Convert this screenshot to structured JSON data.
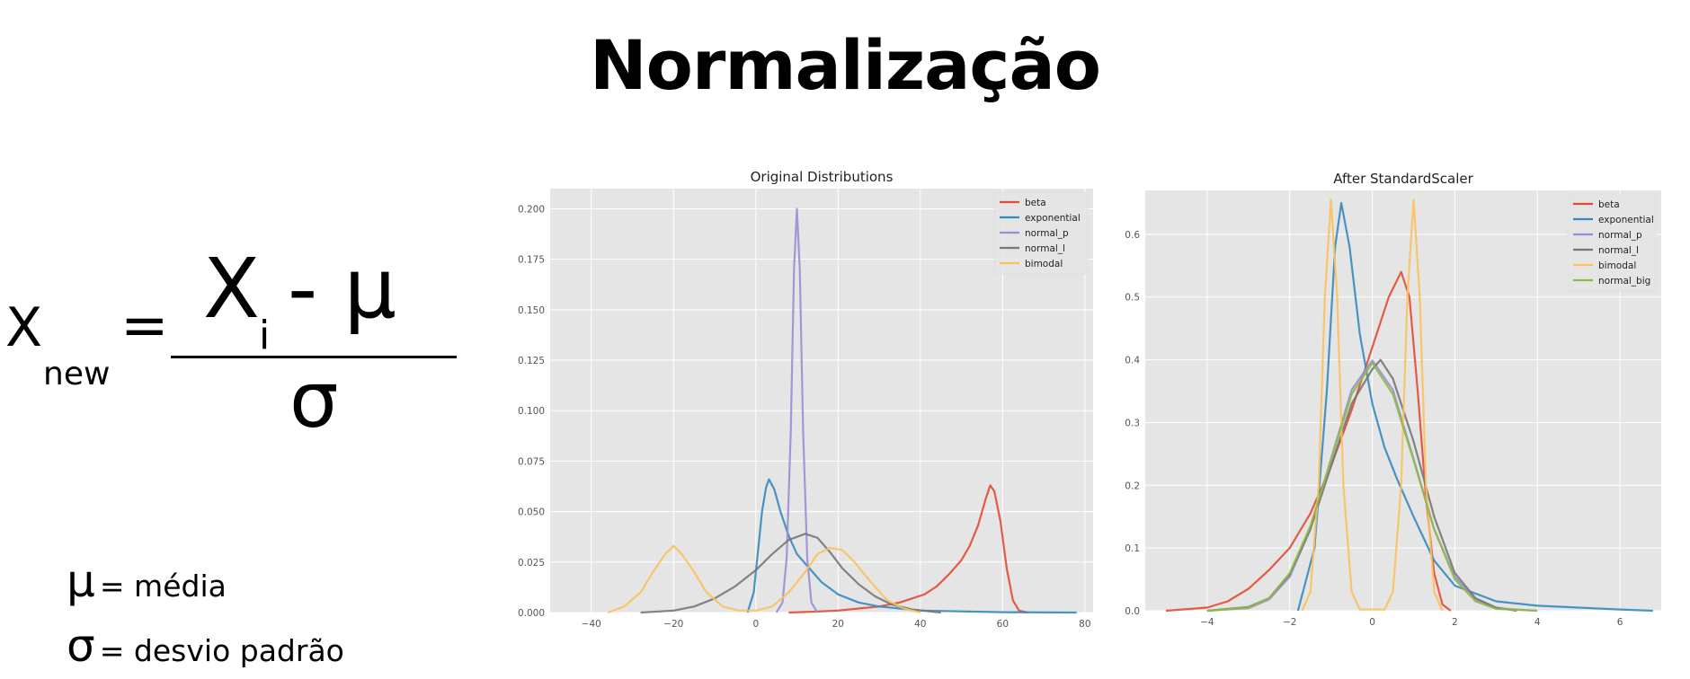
{
  "title": "Normalização",
  "formula": {
    "lhs": "X",
    "lhs_sub": "new",
    "equals": "=",
    "numerator_var": "X",
    "numerator_sub": "i",
    "numerator_rest": "- μ",
    "denominator": "σ"
  },
  "definitions": [
    {
      "symbol": "μ",
      "text": "= média"
    },
    {
      "symbol": "σ",
      "text": "= desvio padrão"
    }
  ],
  "colors": {
    "beta": "#e24a33",
    "exponential": "#348abd",
    "normal_p": "#988ed5",
    "normal_l": "#777777",
    "bimodal": "#fbc15e",
    "normal_big": "#8eba42",
    "plot_bg": "#e5e5e5",
    "grid": "#ffffff"
  },
  "chart_data": [
    {
      "type": "line",
      "title": "Original Distributions",
      "xlim": [
        -50,
        82
      ],
      "ylim": [
        0,
        0.21
      ],
      "xticks": [
        -40,
        -20,
        0,
        20,
        40,
        60,
        80
      ],
      "yticks": [
        0.0,
        0.025,
        0.05,
        0.075,
        0.1,
        0.125,
        0.15,
        0.175,
        0.2
      ],
      "grid": true,
      "legend_position": "top-right",
      "series": [
        {
          "name": "beta",
          "color": "#e24a33",
          "points": [
            [
              8,
              0
            ],
            [
              15,
              0.0005
            ],
            [
              20,
              0.001
            ],
            [
              25,
              0.002
            ],
            [
              30,
              0.003
            ],
            [
              35,
              0.005
            ],
            [
              38,
              0.007
            ],
            [
              41,
              0.009
            ],
            [
              44,
              0.013
            ],
            [
              47,
              0.019
            ],
            [
              50,
              0.026
            ],
            [
              52,
              0.033
            ],
            [
              54,
              0.043
            ],
            [
              56,
              0.057
            ],
            [
              57,
              0.063
            ],
            [
              58,
              0.06
            ],
            [
              59.5,
              0.045
            ],
            [
              61,
              0.022
            ],
            [
              62.5,
              0.006
            ],
            [
              64,
              0.001
            ],
            [
              66,
              0
            ]
          ]
        },
        {
          "name": "exponential",
          "color": "#348abd",
          "points": [
            [
              -2,
              0
            ],
            [
              -0.5,
              0.01
            ],
            [
              0.5,
              0.03
            ],
            [
              1.5,
              0.05
            ],
            [
              2.5,
              0.062
            ],
            [
              3.2,
              0.066
            ],
            [
              4.5,
              0.061
            ],
            [
              6,
              0.05
            ],
            [
              8,
              0.038
            ],
            [
              10,
              0.029
            ],
            [
              13,
              0.022
            ],
            [
              16,
              0.015
            ],
            [
              20,
              0.009
            ],
            [
              25,
              0.005
            ],
            [
              30,
              0.003
            ],
            [
              40,
              0.001
            ],
            [
              60,
              0.0002
            ],
            [
              78,
              0
            ]
          ]
        },
        {
          "name": "normal_p",
          "color": "#988ed5",
          "points": [
            [
              5,
              0
            ],
            [
              6.5,
              0.005
            ],
            [
              7.5,
              0.027
            ],
            [
              8.5,
              0.09
            ],
            [
              9.3,
              0.17
            ],
            [
              10,
              0.2
            ],
            [
              10.7,
              0.17
            ],
            [
              11.5,
              0.09
            ],
            [
              12.5,
              0.027
            ],
            [
              13.5,
              0.005
            ],
            [
              15,
              0
            ]
          ]
        },
        {
          "name": "normal_l",
          "color": "#777777",
          "points": [
            [
              -28,
              0
            ],
            [
              -20,
              0.001
            ],
            [
              -15,
              0.003
            ],
            [
              -10,
              0.007
            ],
            [
              -5,
              0.013
            ],
            [
              0,
              0.021
            ],
            [
              4,
              0.029
            ],
            [
              8,
              0.036
            ],
            [
              12,
              0.039
            ],
            [
              15,
              0.037
            ],
            [
              18,
              0.03
            ],
            [
              21,
              0.022
            ],
            [
              25,
              0.014
            ],
            [
              29,
              0.008
            ],
            [
              33,
              0.004
            ],
            [
              38,
              0.0015
            ],
            [
              45,
              0
            ]
          ]
        },
        {
          "name": "bimodal",
          "color": "#fbc15e",
          "points": [
            [
              -36,
              0
            ],
            [
              -32,
              0.003
            ],
            [
              -28,
              0.01
            ],
            [
              -25,
              0.02
            ],
            [
              -22,
              0.029
            ],
            [
              -20,
              0.033
            ],
            [
              -18,
              0.029
            ],
            [
              -15,
              0.02
            ],
            [
              -12,
              0.01
            ],
            [
              -8,
              0.003
            ],
            [
              -4,
              0.001
            ],
            [
              0,
              0.001
            ],
            [
              4,
              0.003
            ],
            [
              8,
              0.01
            ],
            [
              12,
              0.02
            ],
            [
              15,
              0.029
            ],
            [
              18,
              0.032
            ],
            [
              21,
              0.031
            ],
            [
              24,
              0.025
            ],
            [
              28,
              0.015
            ],
            [
              32,
              0.006
            ],
            [
              36,
              0.002
            ],
            [
              40,
              0
            ]
          ]
        }
      ]
    },
    {
      "type": "line",
      "title": "After StandardScaler",
      "xlim": [
        -5.5,
        7.0
      ],
      "ylim": [
        0,
        0.67
      ],
      "xticks": [
        -4,
        -2,
        0,
        2,
        4,
        6
      ],
      "yticks": [
        0.0,
        0.1,
        0.2,
        0.3,
        0.4,
        0.5,
        0.6
      ],
      "grid": true,
      "legend_position": "top-right",
      "series": [
        {
          "name": "beta",
          "color": "#e24a33",
          "points": [
            [
              -5,
              0
            ],
            [
              -4,
              0.005
            ],
            [
              -3.5,
              0.015
            ],
            [
              -3,
              0.035
            ],
            [
              -2.5,
              0.065
            ],
            [
              -2,
              0.1
            ],
            [
              -1.5,
              0.155
            ],
            [
              -1,
              0.23
            ],
            [
              -0.5,
              0.32
            ],
            [
              0,
              0.42
            ],
            [
              0.4,
              0.5
            ],
            [
              0.7,
              0.54
            ],
            [
              0.9,
              0.5
            ],
            [
              1.1,
              0.35
            ],
            [
              1.3,
              0.18
            ],
            [
              1.5,
              0.06
            ],
            [
              1.7,
              0.01
            ],
            [
              1.9,
              0
            ]
          ]
        },
        {
          "name": "exponential",
          "color": "#348abd",
          "points": [
            [
              -1.8,
              0
            ],
            [
              -1.4,
              0.1
            ],
            [
              -1.1,
              0.35
            ],
            [
              -0.9,
              0.58
            ],
            [
              -0.75,
              0.65
            ],
            [
              -0.55,
              0.58
            ],
            [
              -0.3,
              0.44
            ],
            [
              0,
              0.33
            ],
            [
              0.3,
              0.26
            ],
            [
              0.6,
              0.21
            ],
            [
              1,
              0.15
            ],
            [
              1.5,
              0.08
            ],
            [
              2,
              0.04
            ],
            [
              3,
              0.015
            ],
            [
              4,
              0.008
            ],
            [
              5,
              0.005
            ],
            [
              6,
              0.002
            ],
            [
              6.8,
              0
            ]
          ]
        },
        {
          "name": "normal_p",
          "color": "#988ed5",
          "points": [
            [
              -4,
              0
            ],
            [
              -3,
              0.004
            ],
            [
              -2.5,
              0.018
            ],
            [
              -2,
              0.054
            ],
            [
              -1.5,
              0.13
            ],
            [
              -1,
              0.242
            ],
            [
              -0.5,
              0.352
            ],
            [
              0,
              0.399
            ],
            [
              0.5,
              0.352
            ],
            [
              1,
              0.242
            ],
            [
              1.5,
              0.13
            ],
            [
              2,
              0.054
            ],
            [
              2.5,
              0.018
            ],
            [
              3,
              0.004
            ],
            [
              4,
              0
            ]
          ]
        },
        {
          "name": "normal_l",
          "color": "#777777",
          "points": [
            [
              -4,
              0
            ],
            [
              -3,
              0.006
            ],
            [
              -2.5,
              0.02
            ],
            [
              -2,
              0.058
            ],
            [
              -1.5,
              0.13
            ],
            [
              -1,
              0.23
            ],
            [
              -0.5,
              0.33
            ],
            [
              0,
              0.385
            ],
            [
              0.2,
              0.4
            ],
            [
              0.5,
              0.37
            ],
            [
              1,
              0.27
            ],
            [
              1.5,
              0.15
            ],
            [
              2,
              0.06
            ],
            [
              2.5,
              0.02
            ],
            [
              3,
              0.005
            ],
            [
              3.5,
              0
            ]
          ]
        },
        {
          "name": "bimodal",
          "color": "#fbc15e",
          "points": [
            [
              -1.7,
              0
            ],
            [
              -1.5,
              0.03
            ],
            [
              -1.3,
              0.2
            ],
            [
              -1.15,
              0.5
            ],
            [
              -1,
              0.655
            ],
            [
              -0.85,
              0.5
            ],
            [
              -0.7,
              0.2
            ],
            [
              -0.5,
              0.03
            ],
            [
              -0.3,
              0.002
            ],
            [
              0.3,
              0.002
            ],
            [
              0.5,
              0.03
            ],
            [
              0.7,
              0.2
            ],
            [
              0.85,
              0.5
            ],
            [
              1,
              0.655
            ],
            [
              1.15,
              0.5
            ],
            [
              1.3,
              0.2
            ],
            [
              1.5,
              0.03
            ],
            [
              1.7,
              0
            ]
          ]
        },
        {
          "name": "normal_big",
          "color": "#8eba42",
          "points": [
            [
              -4,
              0
            ],
            [
              -3,
              0.005
            ],
            [
              -2.5,
              0.02
            ],
            [
              -2,
              0.06
            ],
            [
              -1.5,
              0.135
            ],
            [
              -1,
              0.24
            ],
            [
              -0.5,
              0.345
            ],
            [
              0,
              0.395
            ],
            [
              0.5,
              0.345
            ],
            [
              1,
              0.24
            ],
            [
              1.5,
              0.13
            ],
            [
              2,
              0.05
            ],
            [
              2.5,
              0.015
            ],
            [
              3,
              0.003
            ],
            [
              4,
              0
            ]
          ]
        }
      ]
    }
  ]
}
